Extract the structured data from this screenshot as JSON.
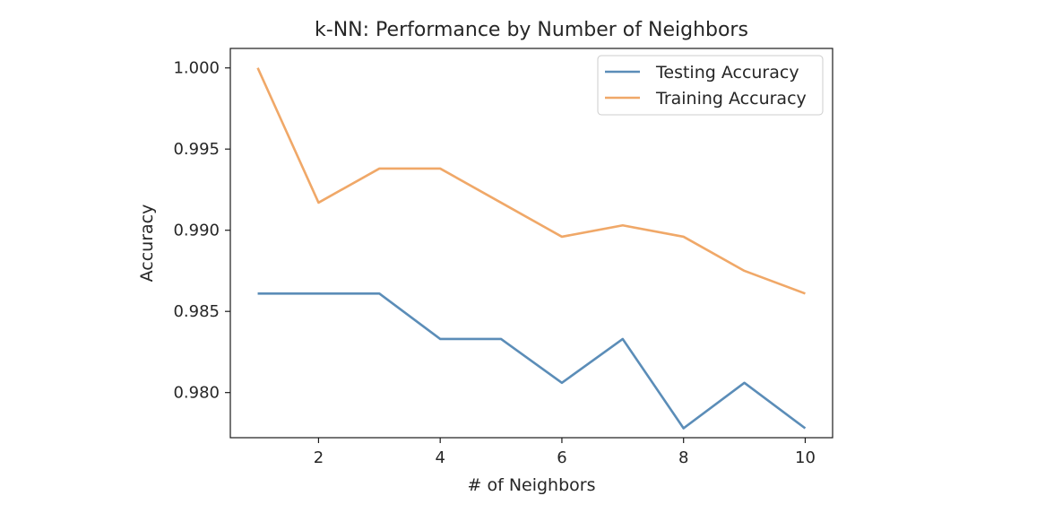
{
  "chart_data": {
    "type": "line",
    "title": "k-NN: Performance by Number of Neighbors",
    "xlabel": "# of Neighbors",
    "ylabel": "Accuracy",
    "x": [
      1,
      2,
      3,
      4,
      5,
      6,
      7,
      8,
      9,
      10
    ],
    "xlim": [
      0.55,
      10.45
    ],
    "ylim": [
      0.97722,
      1.0012
    ],
    "xticks": [
      2,
      4,
      6,
      8,
      10
    ],
    "xtick_labels": [
      "2",
      "4",
      "6",
      "8",
      "10"
    ],
    "yticks": [
      0.98,
      0.985,
      0.99,
      0.995,
      1.0
    ],
    "ytick_labels": [
      "0.980",
      "0.985",
      "0.990",
      "0.995",
      "1.000"
    ],
    "grid": false,
    "legend_position": "top-right",
    "series": [
      {
        "name": "Testing Accuracy",
        "color": "#5b8db8",
        "values": [
          0.9861,
          0.9861,
          0.9861,
          0.9833,
          0.9833,
          0.9806,
          0.9833,
          0.9778,
          0.9806,
          0.9778
        ]
      },
      {
        "name": "Training Accuracy",
        "color": "#f0a868",
        "values": [
          1.0,
          0.9917,
          0.9938,
          0.9938,
          0.9917,
          0.9896,
          0.9903,
          0.9896,
          0.9875,
          0.9861
        ]
      }
    ]
  }
}
